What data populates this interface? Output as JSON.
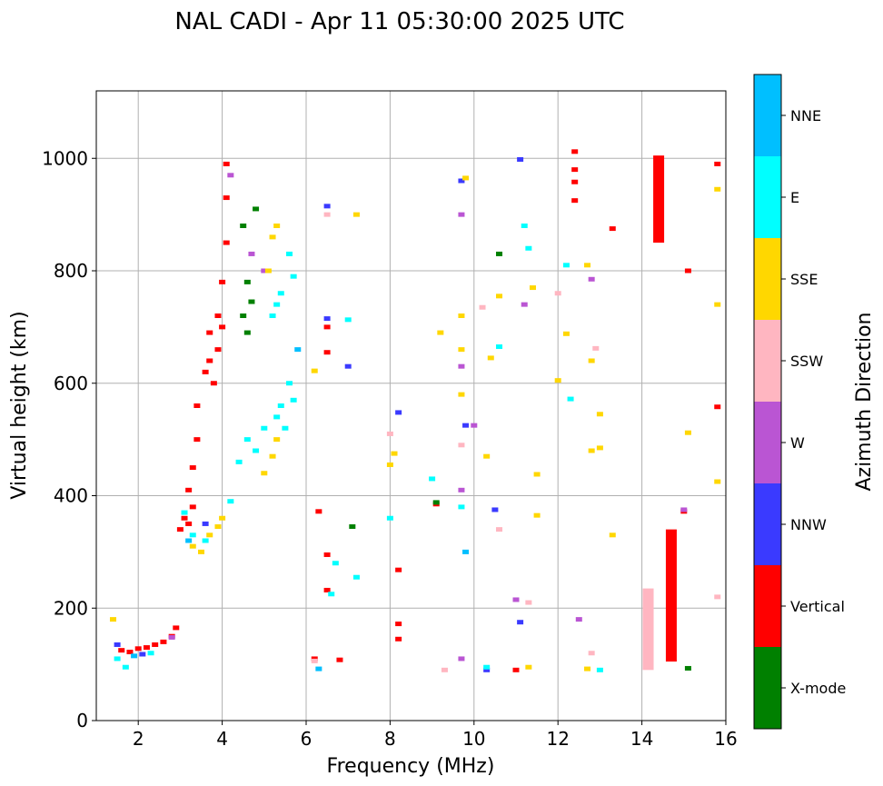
{
  "chart_data": {
    "type": "scatter",
    "title": "NAL CADI - Apr 11 05:30:00 2025 UTC",
    "xlabel": "Frequency (MHz)",
    "ylabel": "Virtual height (km)",
    "xlim": [
      1,
      16
    ],
    "ylim": [
      0,
      1120
    ],
    "xticks": [
      2,
      4,
      6,
      8,
      10,
      12,
      14,
      16
    ],
    "yticks": [
      0,
      200,
      400,
      600,
      800,
      1000
    ],
    "xtick_labels": [
      "2",
      "4",
      "6",
      "8",
      "10",
      "12",
      "14",
      "16"
    ],
    "ytick_labels": [
      "0",
      "200",
      "400",
      "600",
      "800",
      "1000"
    ],
    "grid": true,
    "colorbar": {
      "label": "Azimuth Direction",
      "categories": [
        {
          "name": "X-mode",
          "color": "#008000"
        },
        {
          "name": "Vertical",
          "color": "#ff0000"
        },
        {
          "name": "NNW",
          "color": "#3a3aff"
        },
        {
          "name": "W",
          "color": "#ba55d3"
        },
        {
          "name": "SSW",
          "color": "#ffb6c1"
        },
        {
          "name": "SSE",
          "color": "#ffd700"
        },
        {
          "name": "E",
          "color": "#00ffff"
        },
        {
          "name": "NNE",
          "color": "#00bfff"
        }
      ]
    },
    "series": [
      {
        "name": "Vertical",
        "points": [
          [
            1.6,
            125
          ],
          [
            1.8,
            122
          ],
          [
            2.0,
            128
          ],
          [
            2.2,
            130
          ],
          [
            2.4,
            135
          ],
          [
            2.6,
            140
          ],
          [
            2.8,
            150
          ],
          [
            2.9,
            165
          ],
          [
            3.0,
            340
          ],
          [
            3.1,
            360
          ],
          [
            3.2,
            350
          ],
          [
            3.3,
            380
          ],
          [
            3.2,
            410
          ],
          [
            3.3,
            450
          ],
          [
            3.4,
            500
          ],
          [
            3.4,
            560
          ],
          [
            3.6,
            620
          ],
          [
            3.7,
            640
          ],
          [
            3.8,
            600
          ],
          [
            3.9,
            660
          ],
          [
            4.0,
            700
          ],
          [
            4.0,
            780
          ],
          [
            4.1,
            850
          ],
          [
            4.1,
            930
          ],
          [
            4.1,
            990
          ],
          [
            3.9,
            720
          ],
          [
            3.7,
            690
          ],
          [
            6.3,
            372
          ],
          [
            6.5,
            655
          ],
          [
            6.5,
            700
          ],
          [
            6.5,
            295
          ],
          [
            6.5,
            232
          ],
          [
            6.8,
            108
          ],
          [
            8.2,
            268
          ],
          [
            8.2,
            172
          ],
          [
            8.2,
            145
          ],
          [
            9.1,
            385
          ],
          [
            12.4,
            1012
          ],
          [
            12.4,
            980
          ],
          [
            12.4,
            958
          ],
          [
            12.4,
            925
          ],
          [
            13.3,
            875
          ],
          [
            15.1,
            800
          ],
          [
            15.8,
            990
          ],
          [
            15.8,
            558
          ],
          [
            15.0,
            372
          ],
          [
            11.0,
            90
          ],
          [
            6.2,
            110
          ]
        ]
      },
      {
        "name": "X-mode",
        "points": [
          [
            4.5,
            720
          ],
          [
            4.6,
            780
          ],
          [
            4.7,
            745
          ],
          [
            4.8,
            910
          ],
          [
            4.6,
            690
          ],
          [
            4.5,
            880
          ],
          [
            7.1,
            345
          ],
          [
            9.1,
            388
          ],
          [
            10.6,
            830
          ],
          [
            15.1,
            93
          ]
        ]
      },
      {
        "name": "NNW",
        "points": [
          [
            1.5,
            135
          ],
          [
            2.1,
            118
          ],
          [
            3.6,
            350
          ],
          [
            6.5,
            715
          ],
          [
            6.5,
            915
          ],
          [
            7.0,
            630
          ],
          [
            8.2,
            548
          ],
          [
            9.8,
            525
          ],
          [
            9.7,
            960
          ],
          [
            10.3,
            90
          ],
          [
            10.5,
            375
          ],
          [
            11.1,
            998
          ],
          [
            11.1,
            175
          ]
        ]
      },
      {
        "name": "W",
        "points": [
          [
            2.8,
            148
          ],
          [
            4.2,
            970
          ],
          [
            4.7,
            830
          ],
          [
            5.0,
            800
          ],
          [
            9.7,
            900
          ],
          [
            9.7,
            630
          ],
          [
            9.7,
            410
          ],
          [
            9.7,
            110
          ],
          [
            10.0,
            525
          ],
          [
            11.2,
            740
          ],
          [
            11.0,
            215
          ],
          [
            12.5,
            180
          ],
          [
            12.8,
            785
          ],
          [
            15.0,
            375
          ]
        ]
      },
      {
        "name": "SSW",
        "points": [
          [
            6.2,
            106
          ],
          [
            6.5,
            900
          ],
          [
            8.0,
            510
          ],
          [
            9.3,
            90
          ],
          [
            9.7,
            490
          ],
          [
            10.2,
            735
          ],
          [
            10.6,
            340
          ],
          [
            11.3,
            210
          ],
          [
            12.0,
            760
          ],
          [
            12.8,
            120
          ],
          [
            12.9,
            662
          ],
          [
            14.1,
            200
          ],
          [
            14.2,
            100
          ],
          [
            15.8,
            220
          ]
        ]
      },
      {
        "name": "SSE",
        "points": [
          [
            1.4,
            180
          ],
          [
            3.3,
            310
          ],
          [
            3.5,
            300
          ],
          [
            3.7,
            330
          ],
          [
            3.9,
            345
          ],
          [
            4.0,
            360
          ],
          [
            5.1,
            800
          ],
          [
            5.2,
            860
          ],
          [
            5.3,
            880
          ],
          [
            5.0,
            440
          ],
          [
            5.2,
            470
          ],
          [
            5.3,
            500
          ],
          [
            6.2,
            622
          ],
          [
            7.2,
            900
          ],
          [
            8.0,
            455
          ],
          [
            8.1,
            475
          ],
          [
            9.2,
            690
          ],
          [
            9.7,
            720
          ],
          [
            9.7,
            660
          ],
          [
            9.7,
            580
          ],
          [
            9.8,
            965
          ],
          [
            10.3,
            470
          ],
          [
            10.4,
            645
          ],
          [
            10.6,
            755
          ],
          [
            11.4,
            770
          ],
          [
            11.5,
            365
          ],
          [
            11.5,
            438
          ],
          [
            12.0,
            605
          ],
          [
            12.2,
            688
          ],
          [
            12.7,
            810
          ],
          [
            12.8,
            480
          ],
          [
            12.8,
            640
          ],
          [
            13.0,
            545
          ],
          [
            13.0,
            485
          ],
          [
            13.3,
            330
          ],
          [
            14.2,
            180
          ],
          [
            15.1,
            512
          ],
          [
            15.8,
            945
          ],
          [
            15.8,
            740
          ],
          [
            15.8,
            425
          ],
          [
            11.3,
            95
          ],
          [
            12.7,
            92
          ]
        ]
      },
      {
        "name": "E",
        "points": [
          [
            1.5,
            110
          ],
          [
            1.7,
            95
          ],
          [
            2.3,
            120
          ],
          [
            3.1,
            370
          ],
          [
            3.3,
            330
          ],
          [
            3.6,
            320
          ],
          [
            4.2,
            390
          ],
          [
            4.4,
            460
          ],
          [
            4.6,
            500
          ],
          [
            4.8,
            480
          ],
          [
            5.0,
            520
          ],
          [
            5.3,
            540
          ],
          [
            5.4,
            560
          ],
          [
            5.5,
            520
          ],
          [
            5.6,
            600
          ],
          [
            5.7,
            570
          ],
          [
            5.2,
            720
          ],
          [
            5.3,
            740
          ],
          [
            5.4,
            760
          ],
          [
            5.6,
            830
          ],
          [
            5.7,
            790
          ],
          [
            8.0,
            360
          ],
          [
            9.0,
            430
          ],
          [
            9.7,
            380
          ],
          [
            10.3,
            95
          ],
          [
            10.6,
            665
          ],
          [
            11.2,
            880
          ],
          [
            11.3,
            840
          ],
          [
            12.3,
            572
          ],
          [
            12.2,
            810
          ],
          [
            13.0,
            90
          ],
          [
            6.7,
            280
          ],
          [
            6.6,
            225
          ],
          [
            7.0,
            713
          ],
          [
            7.2,
            255
          ]
        ]
      },
      {
        "name": "NNE",
        "points": [
          [
            1.9,
            115
          ],
          [
            3.2,
            320
          ],
          [
            5.8,
            660
          ],
          [
            6.3,
            92
          ],
          [
            9.8,
            300
          ]
        ]
      }
    ],
    "bands": [
      {
        "name": "Vertical",
        "x": 14.4,
        "y1": 850,
        "y2": 1005
      },
      {
        "name": "SSW",
        "x": 14.15,
        "y1": 90,
        "y2": 235
      },
      {
        "name": "Vertical",
        "x": 14.7,
        "y1": 105,
        "y2": 340
      }
    ]
  }
}
